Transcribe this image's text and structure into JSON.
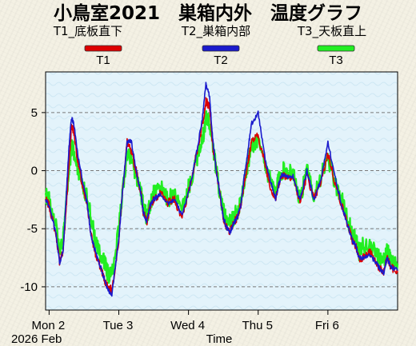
{
  "chart_data": {
    "type": "line",
    "title": "小鳥室2021　巣箱内外　温度グラフ",
    "xlabel": "Time",
    "ylabel": "",
    "x_tick_labels": [
      "Mon 2",
      "Tue 3",
      "Wed 4",
      "Thu 5",
      "Fri 6"
    ],
    "x_sub_label": "2026 Feb",
    "x_range_days": [
      1.95,
      7.0
    ],
    "ylim": [
      -12,
      8.5
    ],
    "y_ticks": [
      -10,
      -5,
      0,
      5
    ],
    "grid": "horizontal dashed",
    "legend_placement": "top",
    "series": [
      {
        "name": "T1_底板直下",
        "code": "T1",
        "color": "#dd0000",
        "x": [
          1.95,
          2.0,
          2.1,
          2.15,
          2.2,
          2.23,
          2.28,
          2.32,
          2.35,
          2.42,
          2.5,
          2.55,
          2.6,
          2.68,
          2.75,
          2.8,
          2.85,
          2.9,
          3.0,
          3.05,
          3.12,
          3.18,
          3.25,
          3.32,
          3.35,
          3.4,
          3.45,
          3.5,
          3.6,
          3.7,
          3.8,
          3.9,
          4.0,
          4.1,
          4.2,
          4.25,
          4.3,
          4.35,
          4.4,
          4.45,
          4.5,
          4.55,
          4.6,
          4.65,
          4.7,
          4.75,
          4.8,
          4.85,
          4.9,
          5.0,
          5.1,
          5.18,
          5.25,
          5.3,
          5.35,
          5.4,
          5.5,
          5.6,
          5.7,
          5.8,
          5.9,
          6.0,
          6.1,
          6.2,
          6.3,
          6.35,
          6.4,
          6.45,
          6.5,
          6.6,
          6.7,
          6.75,
          6.8,
          6.85,
          6.9,
          7.0
        ],
        "y": [
          -2.5,
          -3.0,
          -5.5,
          -7.8,
          -7.0,
          -4.5,
          0.0,
          3.8,
          3.5,
          0.5,
          -2.0,
          -3.0,
          -5.5,
          -7.5,
          -8.5,
          -9.5,
          -10.0,
          -10.3,
          -6.0,
          -2.0,
          2.5,
          1.5,
          0.0,
          -2.0,
          -3.5,
          -4.5,
          -3.0,
          -2.5,
          -2.0,
          -2.8,
          -2.5,
          -4.0,
          -2.0,
          1.0,
          4.0,
          6.0,
          5.5,
          2.0,
          0.0,
          -2.0,
          -4.0,
          -5.0,
          -5.2,
          -4.5,
          -4.0,
          -3.0,
          -1.0,
          0.5,
          2.5,
          3.0,
          0.5,
          -1.5,
          -2.5,
          -1.0,
          -0.3,
          -0.5,
          -0.5,
          -2.8,
          -0.3,
          -2.5,
          -1.0,
          1.5,
          -1.0,
          -3.0,
          -5.0,
          -6.0,
          -6.5,
          -7.5,
          -7.5,
          -7.0,
          -8.0,
          -8.5,
          -8.8,
          -7.5,
          -8.3,
          -8.8
        ]
      },
      {
        "name": "T2_巣箱内部",
        "code": "T2",
        "color": "#1a1acc",
        "x": [
          1.95,
          2.0,
          2.1,
          2.15,
          2.2,
          2.23,
          2.28,
          2.32,
          2.35,
          2.42,
          2.5,
          2.55,
          2.6,
          2.68,
          2.75,
          2.8,
          2.85,
          2.9,
          3.0,
          3.05,
          3.12,
          3.18,
          3.25,
          3.32,
          3.35,
          3.4,
          3.45,
          3.5,
          3.6,
          3.7,
          3.8,
          3.9,
          4.0,
          4.1,
          4.2,
          4.25,
          4.3,
          4.35,
          4.4,
          4.45,
          4.5,
          4.55,
          4.6,
          4.65,
          4.7,
          4.75,
          4.8,
          4.85,
          4.9,
          5.0,
          5.1,
          5.18,
          5.25,
          5.3,
          5.35,
          5.4,
          5.5,
          5.6,
          5.7,
          5.8,
          5.9,
          6.0,
          6.1,
          6.2,
          6.3,
          6.35,
          6.4,
          6.45,
          6.5,
          6.6,
          6.7,
          6.75,
          6.8,
          6.85,
          6.9,
          7.0
        ],
        "y": [
          -2.5,
          -3.0,
          -5.5,
          -8.0,
          -7.0,
          -4.0,
          1.5,
          4.5,
          4.2,
          1.0,
          -1.5,
          -3.0,
          -5.5,
          -7.3,
          -8.5,
          -9.5,
          -10.3,
          -10.6,
          -6.0,
          -2.0,
          2.5,
          2.5,
          0.0,
          -2.0,
          -3.5,
          -4.5,
          -3.0,
          -2.5,
          -2.0,
          -2.8,
          -2.5,
          -3.8,
          -2.0,
          1.0,
          4.5,
          7.5,
          6.5,
          2.5,
          0.0,
          -2.0,
          -4.0,
          -5.0,
          -5.3,
          -4.5,
          -4.0,
          -3.0,
          -0.5,
          1.5,
          4.0,
          5.0,
          1.0,
          -1.0,
          -2.5,
          -1.0,
          -0.3,
          -0.5,
          -0.5,
          -2.5,
          0.0,
          -2.5,
          -0.8,
          2.5,
          -0.5,
          -3.0,
          -5.0,
          -6.0,
          -6.5,
          -7.5,
          -7.5,
          -7.2,
          -8.0,
          -8.5,
          -8.8,
          -7.5,
          -8.3,
          -8.6
        ]
      },
      {
        "name": "T3_天板直上",
        "code": "T3",
        "color": "#22ee22",
        "x": [
          1.95,
          2.0,
          2.1,
          2.15,
          2.2,
          2.23,
          2.28,
          2.32,
          2.35,
          2.42,
          2.5,
          2.55,
          2.6,
          2.68,
          2.75,
          2.8,
          2.85,
          2.9,
          3.0,
          3.05,
          3.12,
          3.18,
          3.25,
          3.32,
          3.35,
          3.4,
          3.45,
          3.5,
          3.6,
          3.7,
          3.8,
          3.9,
          4.0,
          4.1,
          4.2,
          4.25,
          4.3,
          4.35,
          4.4,
          4.45,
          4.5,
          4.55,
          4.6,
          4.65,
          4.7,
          4.75,
          4.8,
          4.85,
          4.9,
          5.0,
          5.1,
          5.18,
          5.25,
          5.3,
          5.35,
          5.4,
          5.5,
          5.6,
          5.7,
          5.8,
          5.9,
          6.0,
          6.1,
          6.2,
          6.3,
          6.35,
          6.4,
          6.45,
          6.5,
          6.6,
          6.7,
          6.75,
          6.8,
          6.85,
          6.9,
          7.0
        ],
        "y": [
          -2.0,
          -2.5,
          -4.5,
          -7.0,
          -6.0,
          -4.0,
          -0.5,
          2.0,
          1.8,
          0.0,
          -1.5,
          -2.5,
          -4.0,
          -6.5,
          -7.5,
          -8.0,
          -9.0,
          -9.0,
          -5.0,
          -2.0,
          1.5,
          1.0,
          -0.5,
          -2.0,
          -3.0,
          -4.0,
          -3.0,
          -2.0,
          -1.5,
          -2.5,
          -2.0,
          -3.5,
          -1.5,
          0.5,
          2.5,
          4.5,
          4.0,
          2.0,
          0.0,
          -2.0,
          -3.5,
          -4.5,
          -4.5,
          -4.0,
          -3.5,
          -2.5,
          -1.0,
          0.5,
          2.0,
          2.8,
          0.5,
          -1.0,
          -2.0,
          -0.5,
          0.0,
          0.0,
          0.0,
          -2.5,
          0.0,
          -2.0,
          -0.5,
          1.0,
          -1.0,
          -2.5,
          -4.5,
          -5.5,
          -6.0,
          -7.0,
          -6.5,
          -6.5,
          -7.0,
          -7.5,
          -7.8,
          -7.0,
          -7.5,
          -8.0
        ]
      }
    ]
  }
}
